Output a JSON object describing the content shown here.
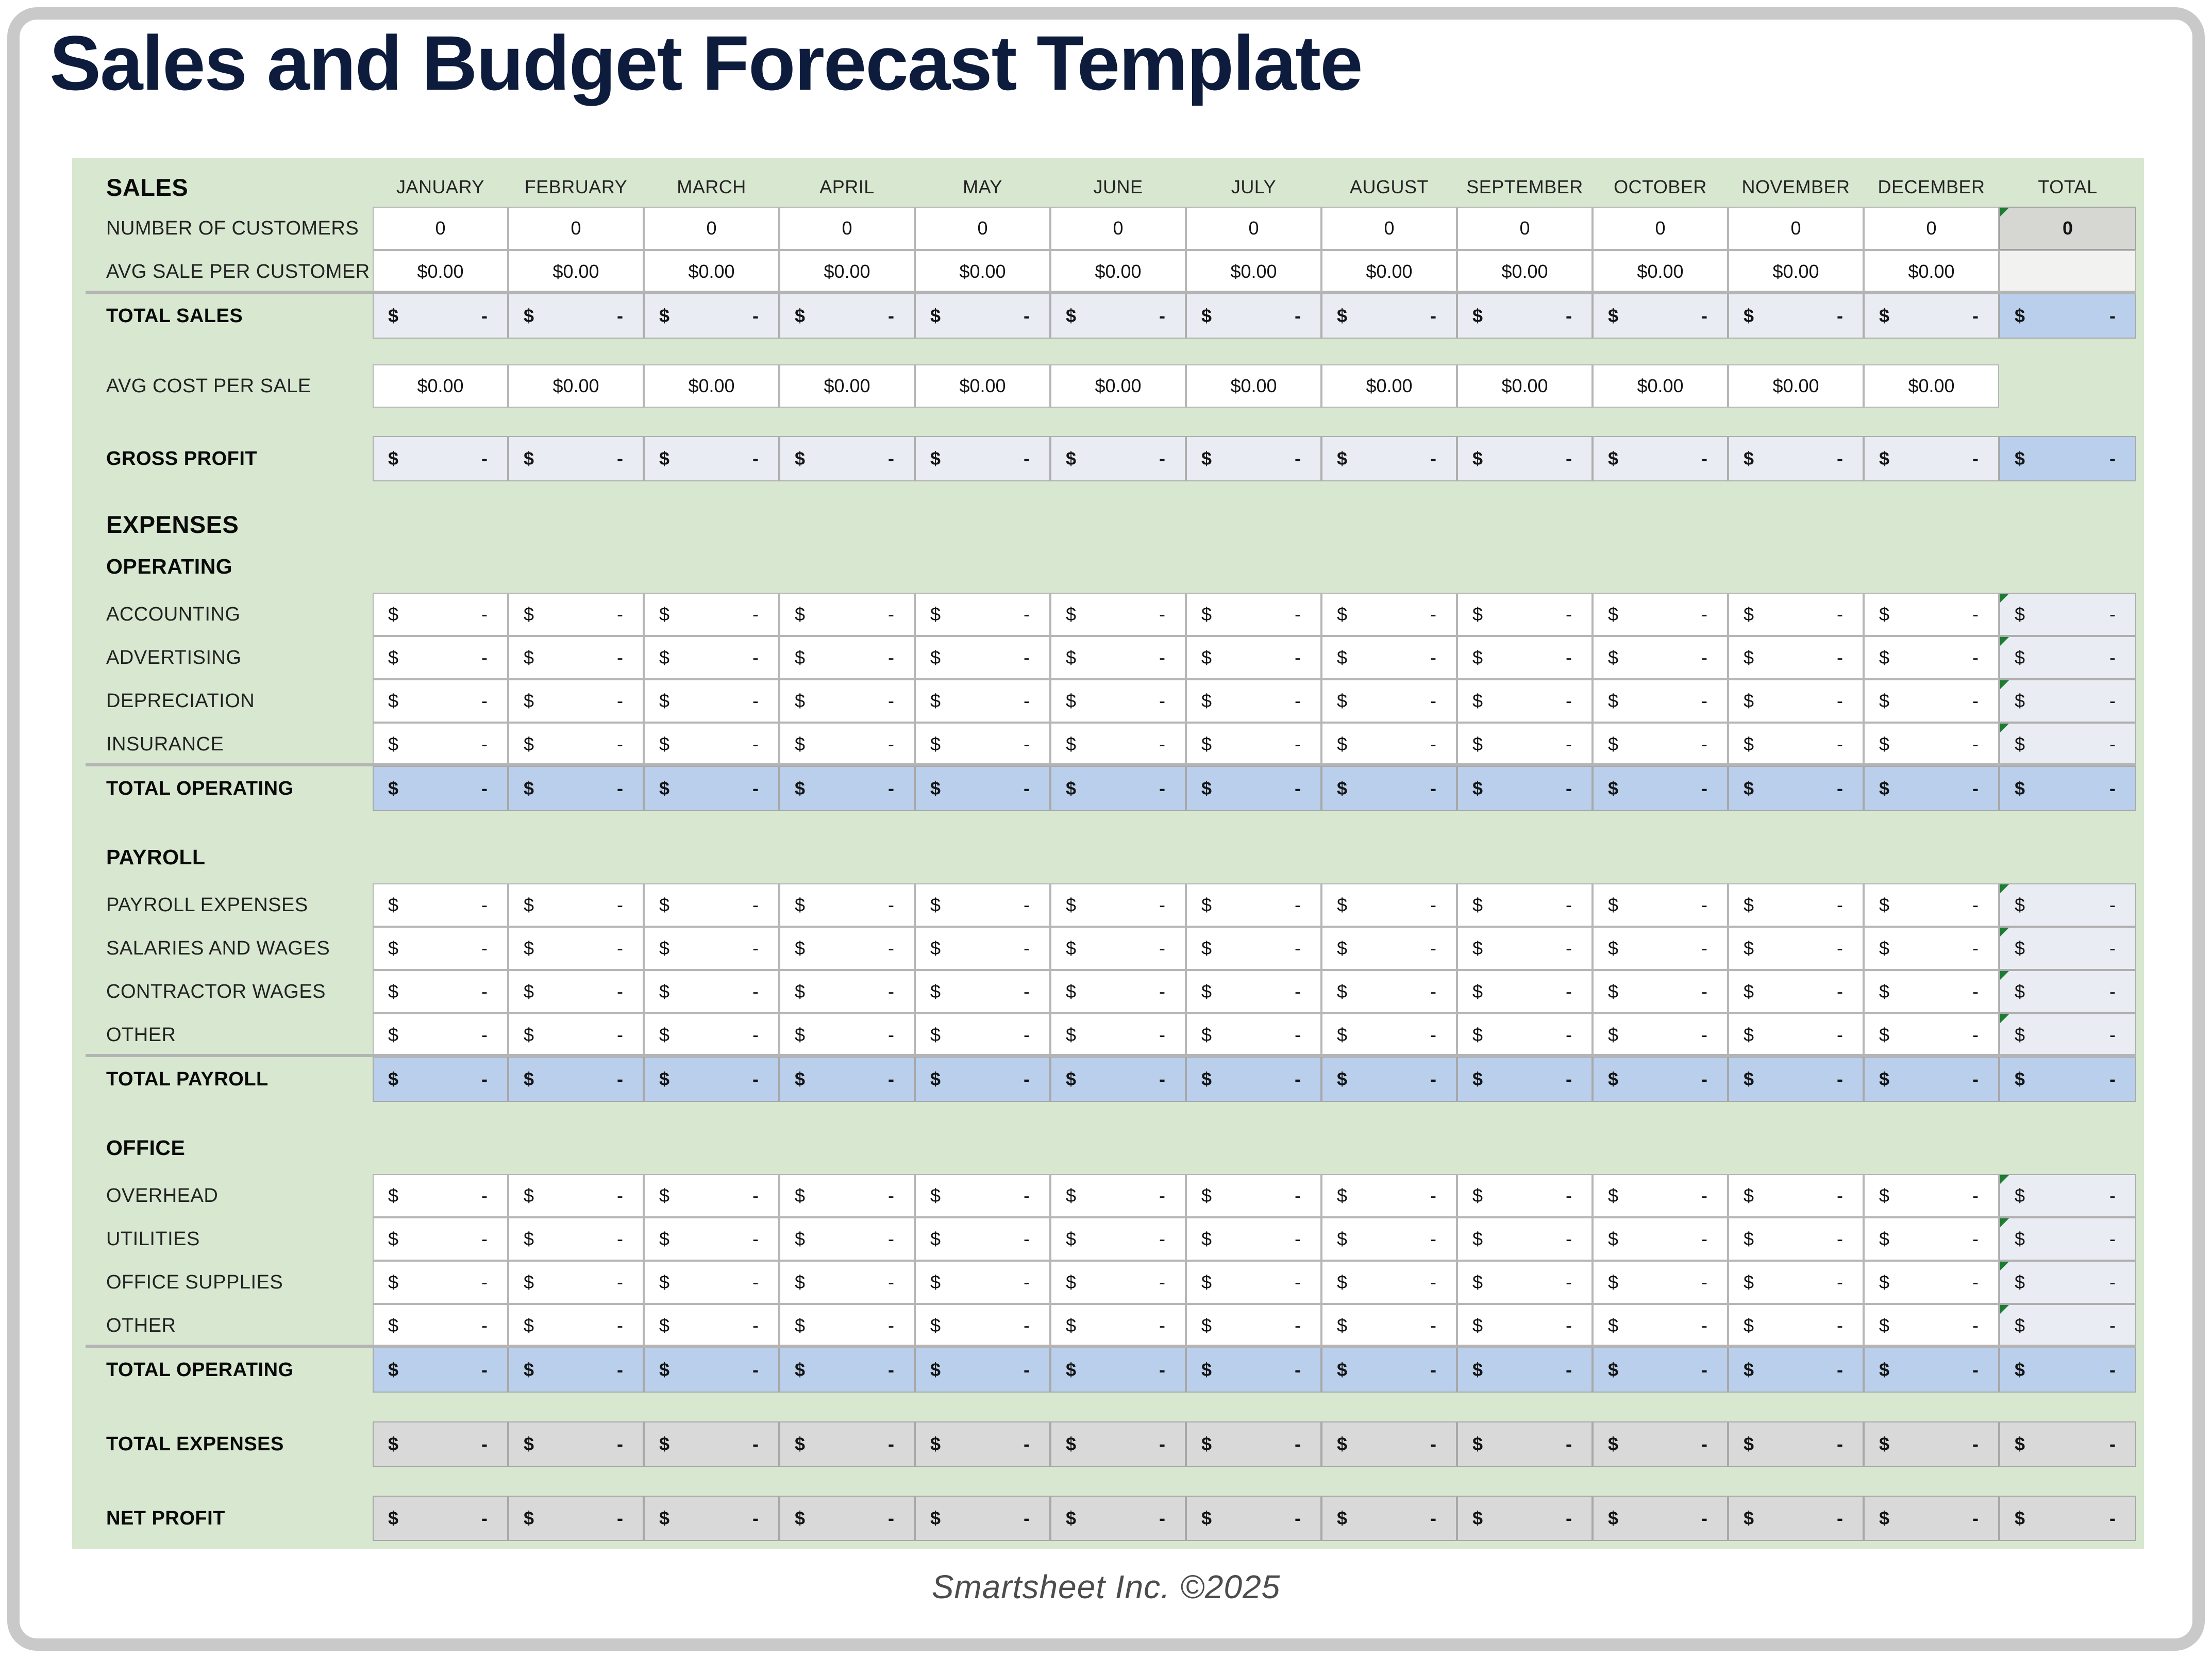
{
  "title": "Sales and Budget Forecast Template",
  "footer": "Smartsheet Inc. ©2025",
  "colors": {
    "sheet_green": "#d8e7d0",
    "total_blue": "#b9cfec",
    "subtotal_light": "#e9ecf3",
    "summary_gray": "#d9d9d9",
    "input_white": "#ffffff",
    "title_navy": "#0d1c3d",
    "formula_marker_green": "#1e7b34",
    "frame_gray": "#c9c9c9"
  },
  "table": {
    "months": [
      "JANUARY",
      "FEBRUARY",
      "MARCH",
      "APRIL",
      "MAY",
      "JUNE",
      "JULY",
      "AUGUST",
      "SEPTEMBER",
      "OCTOBER",
      "NOVEMBER",
      "DECEMBER"
    ],
    "total_label": "TOTAL",
    "rows": [
      {
        "name": "sales-columns-header",
        "kind": "columns-header",
        "label": "SALES",
        "size": "big"
      },
      {
        "name": "number-of-customers",
        "kind": "data",
        "label": "NUMBER OF CUSTOMERS",
        "month_cell": {
          "bg": "white",
          "format": "center",
          "text": "0",
          "editable": true
        },
        "total_cell": {
          "bg": "grayheavy",
          "format": "center",
          "text": "0",
          "bold": true,
          "marker": true
        }
      },
      {
        "name": "avg-sale-per-customer",
        "kind": "data",
        "label": "AVG SALE PER CUSTOMER",
        "month_cell": {
          "bg": "white",
          "format": "center",
          "text": "$0.00",
          "editable": true
        },
        "total_cell": {
          "bg": "lightgray",
          "format": "empty"
        }
      },
      {
        "name": "total-sales",
        "kind": "data",
        "label": "TOTAL SALES",
        "total_row": true,
        "topline": true,
        "month_cell": {
          "bg": "light",
          "format": "accounting",
          "currency": "$",
          "amount": "-"
        },
        "total_cell": {
          "bg": "blue",
          "format": "accounting",
          "currency": "$",
          "amount": "-"
        }
      },
      {
        "name": "avg-cost-per-sale",
        "kind": "data",
        "label": "AVG COST PER SALE",
        "month_cell": {
          "bg": "white",
          "format": "center",
          "text": "$0.00",
          "editable": true
        },
        "total_cell": null
      },
      {
        "name": "gross-profit",
        "kind": "data",
        "label": "GROSS PROFIT",
        "total_row": true,
        "month_cell": {
          "bg": "light",
          "format": "accounting",
          "currency": "$",
          "amount": "-"
        },
        "total_cell": {
          "bg": "blue",
          "format": "accounting",
          "currency": "$",
          "amount": "-"
        }
      },
      {
        "name": "expenses-header",
        "kind": "section",
        "label": "EXPENSES",
        "size": "big"
      },
      {
        "name": "operating-header",
        "kind": "section",
        "label": "OPERATING",
        "size": "small"
      },
      {
        "name": "accounting",
        "kind": "data",
        "label": "ACCOUNTING",
        "month_cell": {
          "bg": "white",
          "format": "accounting",
          "currency": "$",
          "amount": "-",
          "editable": true
        },
        "total_cell": {
          "bg": "light",
          "format": "accounting",
          "currency": "$",
          "amount": "-",
          "marker": true
        }
      },
      {
        "name": "advertising",
        "kind": "data",
        "label": "ADVERTISING",
        "month_cell": {
          "bg": "white",
          "format": "accounting",
          "currency": "$",
          "amount": "-",
          "editable": true
        },
        "total_cell": {
          "bg": "light",
          "format": "accounting",
          "currency": "$",
          "amount": "-",
          "marker": true
        }
      },
      {
        "name": "depreciation",
        "kind": "data",
        "label": "DEPRECIATION",
        "month_cell": {
          "bg": "white",
          "format": "accounting",
          "currency": "$",
          "amount": "-",
          "editable": true
        },
        "total_cell": {
          "bg": "light",
          "format": "accounting",
          "currency": "$",
          "amount": "-",
          "marker": true
        }
      },
      {
        "name": "insurance",
        "kind": "data",
        "label": "INSURANCE",
        "month_cell": {
          "bg": "white",
          "format": "accounting",
          "currency": "$",
          "amount": "-",
          "editable": true
        },
        "total_cell": {
          "bg": "light",
          "format": "accounting",
          "currency": "$",
          "amount": "-",
          "marker": true
        }
      },
      {
        "name": "total-operating",
        "kind": "data",
        "label": "TOTAL OPERATING",
        "total_row": true,
        "topline": true,
        "month_cell": {
          "bg": "blue",
          "format": "accounting",
          "currency": "$",
          "amount": "-"
        },
        "total_cell": {
          "bg": "blue",
          "format": "accounting",
          "currency": "$",
          "amount": "-"
        }
      },
      {
        "name": "payroll-header",
        "kind": "section",
        "label": "PAYROLL",
        "size": "small"
      },
      {
        "name": "payroll-expenses",
        "kind": "data",
        "label": "PAYROLL EXPENSES",
        "month_cell": {
          "bg": "white",
          "format": "accounting",
          "currency": "$",
          "amount": "-",
          "editable": true
        },
        "total_cell": {
          "bg": "light",
          "format": "accounting",
          "currency": "$",
          "amount": "-",
          "marker": true
        }
      },
      {
        "name": "salaries-and-wages",
        "kind": "data",
        "label": "SALARIES AND WAGES",
        "month_cell": {
          "bg": "white",
          "format": "accounting",
          "currency": "$",
          "amount": "-",
          "editable": true
        },
        "total_cell": {
          "bg": "light",
          "format": "accounting",
          "currency": "$",
          "amount": "-",
          "marker": true
        }
      },
      {
        "name": "contractor-wages",
        "kind": "data",
        "label": "CONTRACTOR WAGES",
        "month_cell": {
          "bg": "white",
          "format": "accounting",
          "currency": "$",
          "amount": "-",
          "editable": true
        },
        "total_cell": {
          "bg": "light",
          "format": "accounting",
          "currency": "$",
          "amount": "-",
          "marker": true
        }
      },
      {
        "name": "other-payroll",
        "kind": "data",
        "label": "OTHER",
        "month_cell": {
          "bg": "white",
          "format": "accounting",
          "currency": "$",
          "amount": "-",
          "editable": true
        },
        "total_cell": {
          "bg": "light",
          "format": "accounting",
          "currency": "$",
          "amount": "-",
          "marker": true
        }
      },
      {
        "name": "total-payroll",
        "kind": "data",
        "label": "TOTAL PAYROLL",
        "total_row": true,
        "topline": true,
        "month_cell": {
          "bg": "blue",
          "format": "accounting",
          "currency": "$",
          "amount": "-"
        },
        "total_cell": {
          "bg": "blue",
          "format": "accounting",
          "currency": "$",
          "amount": "-"
        }
      },
      {
        "name": "office-header",
        "kind": "section",
        "label": "OFFICE",
        "size": "small"
      },
      {
        "name": "overhead",
        "kind": "data",
        "label": "OVERHEAD",
        "month_cell": {
          "bg": "white",
          "format": "accounting",
          "currency": "$",
          "amount": "-",
          "editable": true
        },
        "total_cell": {
          "bg": "light",
          "format": "accounting",
          "currency": "$",
          "amount": "-",
          "marker": true
        }
      },
      {
        "name": "utilities",
        "kind": "data",
        "label": "UTILITIES",
        "month_cell": {
          "bg": "white",
          "format": "accounting",
          "currency": "$",
          "amount": "-",
          "editable": true
        },
        "total_cell": {
          "bg": "light",
          "format": "accounting",
          "currency": "$",
          "amount": "-",
          "marker": true
        }
      },
      {
        "name": "office-supplies",
        "kind": "data",
        "label": "OFFICE SUPPLIES",
        "month_cell": {
          "bg": "white",
          "format": "accounting",
          "currency": "$",
          "amount": "-",
          "editable": true
        },
        "total_cell": {
          "bg": "light",
          "format": "accounting",
          "currency": "$",
          "amount": "-",
          "marker": true
        }
      },
      {
        "name": "other-office",
        "kind": "data",
        "label": "OTHER",
        "month_cell": {
          "bg": "white",
          "format": "accounting",
          "currency": "$",
          "amount": "-",
          "editable": true
        },
        "total_cell": {
          "bg": "light",
          "format": "accounting",
          "currency": "$",
          "amount": "-",
          "marker": true
        }
      },
      {
        "name": "total-operating-2",
        "kind": "data",
        "label": "TOTAL OPERATING",
        "total_row": true,
        "topline": true,
        "month_cell": {
          "bg": "blue",
          "format": "accounting",
          "currency": "$",
          "amount": "-"
        },
        "total_cell": {
          "bg": "blue",
          "format": "accounting",
          "currency": "$",
          "amount": "-"
        }
      },
      {
        "name": "total-expenses",
        "kind": "data",
        "label": "TOTAL EXPENSES",
        "total_row": true,
        "month_cell": {
          "bg": "gray",
          "format": "accounting",
          "currency": "$",
          "amount": "-"
        },
        "total_cell": {
          "bg": "gray",
          "format": "accounting",
          "currency": "$",
          "amount": "-"
        }
      },
      {
        "name": "net-profit",
        "kind": "data",
        "label": "NET PROFIT",
        "total_row": true,
        "month_cell": {
          "bg": "gray",
          "format": "accounting",
          "currency": "$",
          "amount": "-"
        },
        "total_cell": {
          "bg": "gray",
          "format": "accounting",
          "currency": "$",
          "amount": "-"
        }
      }
    ]
  }
}
